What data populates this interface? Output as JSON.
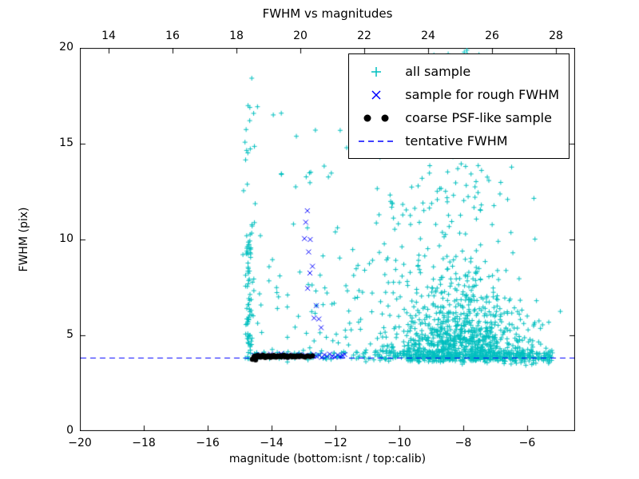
{
  "chart_data": {
    "type": "scatter",
    "title": "FWHM vs magnitudes",
    "xlabel": "magnitude (bottom:isnt / top:calib)",
    "ylabel": "FWHM (pix)",
    "xlim": [
      -20,
      -4.5
    ],
    "ylim": [
      0,
      20
    ],
    "grid": false,
    "legend_loc": "upper right",
    "bottom_axis": {
      "values": [
        -20,
        -18,
        -16,
        -14,
        -12,
        -10,
        -8,
        -6
      ],
      "labels": [
        "−20",
        "−18",
        "−16",
        "−14",
        "−12",
        "−10",
        "−8",
        "−6"
      ]
    },
    "top_axis": {
      "lim": [
        13.1,
        28.6
      ],
      "values": [
        14,
        16,
        18,
        20,
        22,
        24,
        26,
        28
      ],
      "labels": [
        "14",
        "16",
        "18",
        "20",
        "22",
        "24",
        "26",
        "28"
      ]
    },
    "y_axis": {
      "values": [
        0,
        5,
        10,
        15,
        20
      ],
      "labels": [
        "0",
        "5",
        "10",
        "15",
        "20"
      ]
    },
    "colors": {
      "all_sample": "#00bfbf",
      "rough_fwhm": "#0000ff",
      "psf_sample": "#000000",
      "tentative": "#0000ff",
      "frame": "#000000"
    },
    "legend": {
      "entries": [
        {
          "label": "all sample",
          "marker": "plus"
        },
        {
          "label": "sample for rough FWHM",
          "marker": "x"
        },
        {
          "label": "coarse PSF-like sample",
          "marker": "dots"
        },
        {
          "label": "tentative FWHM",
          "marker": "dash"
        }
      ]
    },
    "series": {
      "all_sample": {
        "marker": "plus",
        "color": "#00bfbf",
        "seed": 42,
        "clusters": [
          {
            "n": 75,
            "x": [
              "gauss",
              -14.7,
              0.06
            ],
            "y": [
              "uniform",
              3.6,
              10.3
            ]
          },
          {
            "n": 16,
            "x": [
              "gauss",
              -14.7,
              0.09
            ],
            "y": [
              "uniform",
              10.3,
              18.7
            ]
          },
          {
            "n": 75,
            "x": [
              "uniform",
              -14.95,
              -10.7
            ],
            "y": [
              "uniform",
              3.6,
              9.0
            ]
          },
          {
            "n": 30,
            "x": [
              "uniform",
              -14.7,
              -10.7
            ],
            "y": [
              "uniform",
              9.0,
              17.8
            ]
          },
          {
            "n": 70,
            "x": [
              "uniform",
              -14.6,
              -10.7
            ],
            "y": [
              "gauss",
              3.95,
              0.14
            ]
          },
          {
            "n": 600,
            "x": [
              "gauss",
              -8.0,
              1.1
            ],
            "y": [
              "halfgauss",
              3.65,
              1.5
            ]
          },
          {
            "n": 280,
            "x": [
              "gauss",
              -8.1,
              1.0
            ],
            "y": [
              "halfgauss",
              3.8,
              3.4
            ]
          },
          {
            "n": 130,
            "x": [
              "gauss",
              -8.15,
              0.8
            ],
            "y": [
              "uniform",
              11.5,
              19.9
            ]
          },
          {
            "n": 320,
            "x": [
              "uniform",
              -10.7,
              -5.2
            ],
            "y": [
              "gauss",
              3.9,
              0.17
            ]
          },
          {
            "n": 50,
            "x": [
              "uniform",
              -10.7,
              -9.2
            ],
            "y": [
              "uniform",
              4.2,
              13.5
            ]
          }
        ]
      },
      "rough_fwhm": {
        "marker": "x",
        "color": "#0000ff",
        "points": [
          [
            -14.55,
            3.95
          ],
          [
            -14.45,
            3.88
          ],
          [
            -14.36,
            4.0
          ],
          [
            -14.28,
            3.86
          ],
          [
            -14.2,
            3.94
          ],
          [
            -14.12,
            3.9
          ],
          [
            -14.03,
            4.02
          ],
          [
            -13.95,
            3.88
          ],
          [
            -13.87,
            3.96
          ],
          [
            -13.78,
            3.9
          ],
          [
            -13.7,
            4.04
          ],
          [
            -13.62,
            3.92
          ],
          [
            -13.53,
            3.85
          ],
          [
            -13.46,
            3.98
          ],
          [
            -13.37,
            3.9
          ],
          [
            -13.28,
            3.95
          ],
          [
            -13.2,
            3.87
          ],
          [
            -13.11,
            4.0
          ],
          [
            -13.02,
            3.9
          ],
          [
            -12.94,
            3.96
          ],
          [
            -12.85,
            3.88
          ],
          [
            -12.76,
            3.93
          ],
          [
            -12.68,
            4.0
          ],
          [
            -12.6,
            3.9
          ],
          [
            -12.51,
            3.96
          ],
          [
            -12.43,
            3.85
          ],
          [
            -12.35,
            3.98
          ],
          [
            -12.26,
            3.9
          ],
          [
            -12.18,
            4.02
          ],
          [
            -12.1,
            3.92
          ],
          [
            -12.01,
            3.87
          ],
          [
            -11.93,
            3.97
          ],
          [
            -11.85,
            3.9
          ],
          [
            -11.78,
            3.95
          ],
          [
            -11.71,
            4.0
          ],
          [
            -12.88,
            11.5
          ],
          [
            -12.93,
            10.9
          ],
          [
            -12.97,
            10.05
          ],
          [
            -12.79,
            10.0
          ],
          [
            -12.84,
            9.35
          ],
          [
            -12.72,
            8.6
          ],
          [
            -12.8,
            8.25
          ],
          [
            -12.87,
            7.45
          ],
          [
            -12.6,
            6.55
          ],
          [
            -12.67,
            5.9
          ],
          [
            -12.52,
            5.85
          ],
          [
            -12.45,
            5.4
          ]
        ]
      },
      "psf_like": {
        "marker": "dot",
        "color": "#000000",
        "points": [
          [
            -14.55,
            3.88
          ],
          [
            -14.52,
            3.92
          ],
          [
            -14.5,
            3.85
          ],
          [
            -14.47,
            3.9
          ],
          [
            -14.44,
            3.95
          ],
          [
            -14.4,
            3.88
          ],
          [
            -14.37,
            3.93
          ],
          [
            -14.34,
            3.86
          ],
          [
            -14.3,
            3.91
          ],
          [
            -14.27,
            3.96
          ],
          [
            -14.24,
            3.89
          ],
          [
            -14.2,
            3.84
          ],
          [
            -14.17,
            3.92
          ],
          [
            -14.14,
            3.87
          ],
          [
            -14.1,
            3.94
          ],
          [
            -14.07,
            3.9
          ],
          [
            -14.03,
            3.85
          ],
          [
            -14.0,
            3.93
          ],
          [
            -13.97,
            3.88
          ],
          [
            -13.93,
            3.95
          ],
          [
            -13.9,
            3.9
          ],
          [
            -13.86,
            3.86
          ],
          [
            -13.82,
            3.92
          ],
          [
            -13.78,
            3.89
          ],
          [
            -13.74,
            3.94
          ],
          [
            -13.7,
            3.87
          ],
          [
            -13.66,
            3.91
          ],
          [
            -13.62,
            3.96
          ],
          [
            -13.58,
            3.88
          ],
          [
            -13.54,
            3.92
          ],
          [
            -13.5,
            3.85
          ],
          [
            -13.45,
            3.9
          ],
          [
            -13.4,
            3.94
          ],
          [
            -13.35,
            3.88
          ],
          [
            -13.3,
            3.92
          ],
          [
            -13.25,
            3.87
          ],
          [
            -13.2,
            3.93
          ],
          [
            -13.14,
            3.89
          ],
          [
            -13.08,
            3.94
          ],
          [
            -13.02,
            3.9
          ],
          [
            -12.95,
            3.86
          ],
          [
            -12.88,
            3.92
          ],
          [
            -12.8,
            3.89
          ],
          [
            -12.72,
            3.93
          ],
          [
            -14.6,
            3.75
          ],
          [
            -14.5,
            3.72
          ]
        ]
      },
      "tentative_fwhm": {
        "type": "hline",
        "color": "#0000ff",
        "y": 3.85,
        "dash": [
          7,
          5
        ]
      }
    }
  }
}
